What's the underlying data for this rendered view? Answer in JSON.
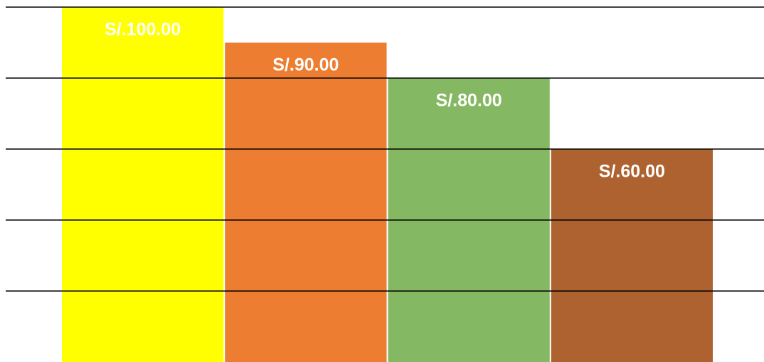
{
  "chart_data": {
    "type": "bar",
    "categories": [
      null,
      null,
      null,
      null
    ],
    "values": [
      100,
      90,
      80,
      60
    ],
    "value_labels": [
      "S/.100.00",
      "S/.90.00",
      "S/.80.00",
      "S/.60.00"
    ],
    "colors": [
      "#ffff00",
      "#ed7d31",
      "#85b862",
      "#ad6230"
    ],
    "ylim": [
      0,
      100
    ],
    "yticks": [
      20,
      40,
      60,
      80,
      100
    ],
    "grid": true
  }
}
